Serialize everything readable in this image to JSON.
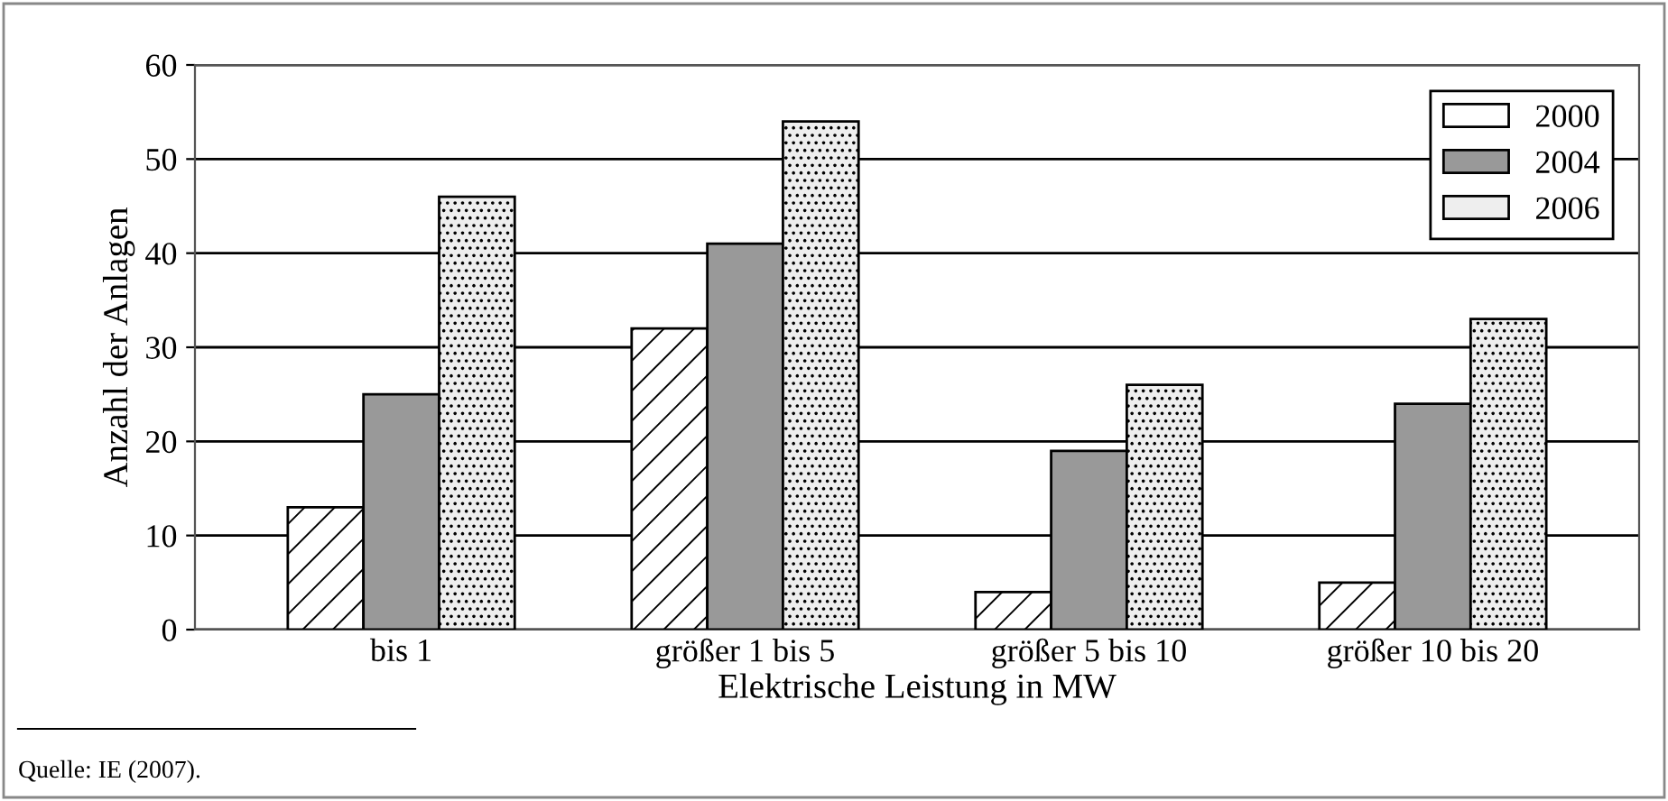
{
  "chart_data": {
    "type": "bar",
    "categories": [
      "bis 1",
      "größer 1 bis 5",
      "größer 5 bis 10",
      "größer 10 bis 20"
    ],
    "series": [
      {
        "name": "2000",
        "color": "#ffffff",
        "values": [
          13,
          32,
          4,
          5
        ]
      },
      {
        "name": "2004",
        "color": "#999999",
        "values": [
          25,
          41,
          19,
          24
        ]
      },
      {
        "name": "2006",
        "color": "#eeeeee",
        "values": [
          46,
          54,
          26,
          33
        ]
      }
    ],
    "xlabel": "Elektrische Leistung in MW",
    "ylabel": "Anzahl der Anlagen",
    "ylim": [
      0,
      60
    ],
    "yticks": [
      0,
      10,
      20,
      30,
      40,
      50,
      60
    ],
    "grid": "y",
    "legend": "top right",
    "annotations": [
      "Quelle: IE (2007)."
    ]
  }
}
